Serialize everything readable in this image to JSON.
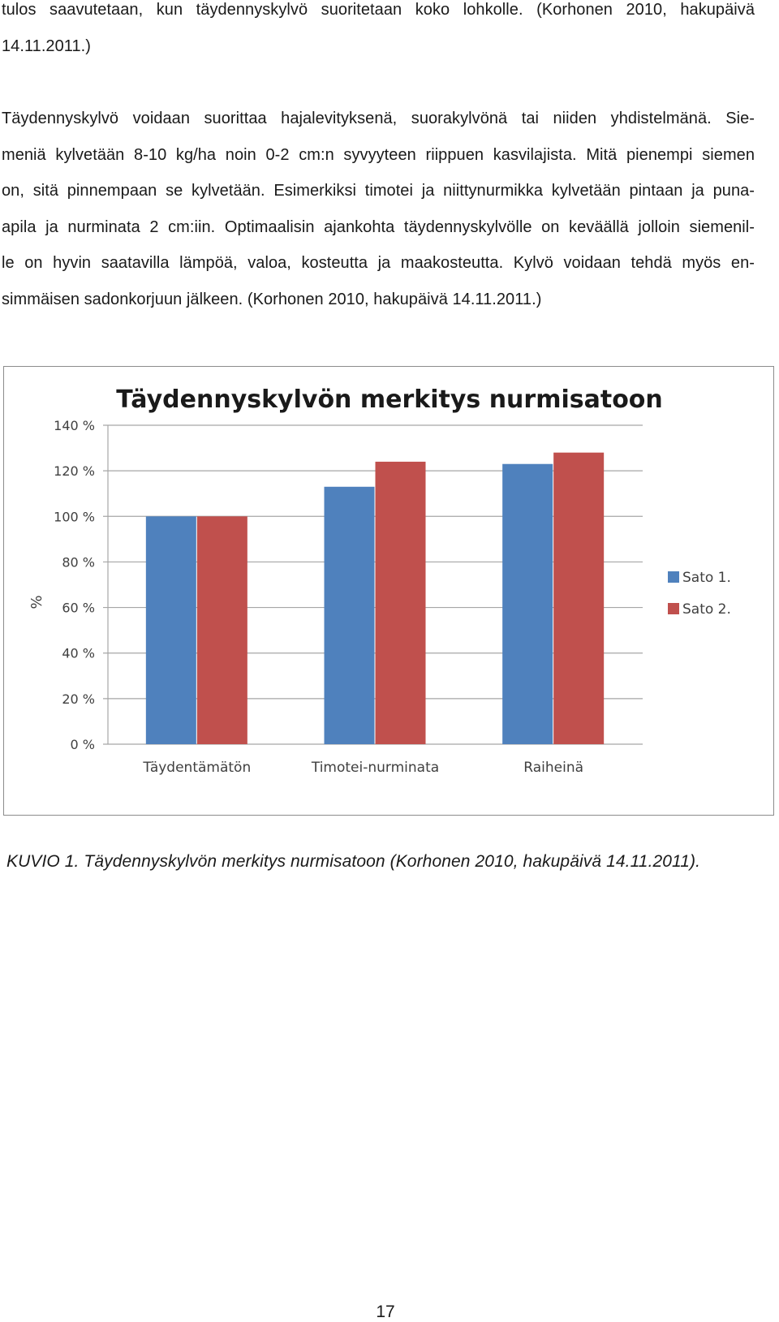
{
  "paragraphs": [
    {
      "lines": [
        "tulos saavutetaan, kun täydennyskylvö suoritetaan koko lohkolle. (Korhonen 2010, hakupäivä",
        "14.11.2011.)"
      ]
    },
    {
      "lines": [
        "Täydennyskylvö voidaan suorittaa hajalevityksenä, suorakylvönä tai niiden yhdistelmänä. Sie-",
        "meniä kylvetään 8-10 kg/ha noin 0-2 cm:n syvyyteen riippuen kasvilajista. Mitä pienempi siemen",
        "on, sitä pinnempaan se kylvetään. Esimerkiksi timotei ja niittynurmikka kylvetään pintaan ja puna-",
        "apila ja nurminata 2 cm:iin. Optimaalisin ajankohta täydennyskylvölle on keväällä jolloin siemenil-",
        "le on hyvin saatavilla lämpöä, valoa, kosteutta ja maakosteutta. Kylvö voidaan tehdä myös en-",
        "simmäisen sadonkorjuun jälkeen. (Korhonen 2010, hakupäivä 14.11.2011.)"
      ]
    }
  ],
  "chart_data": {
    "type": "bar",
    "title": "Täydennyskylvön merkitys nurmisatoon",
    "xlabel": "",
    "ylabel": "%",
    "categories": [
      "Täydentämätön",
      "Timotei-nurminata",
      "Raiheinä"
    ],
    "series": [
      {
        "name": "Sato 1.",
        "color": "#4f81bd",
        "values": [
          100,
          113,
          123
        ]
      },
      {
        "name": "Sato 2.",
        "color": "#c0504d",
        "values": [
          100,
          124,
          128
        ]
      }
    ],
    "ylim": [
      0,
      140
    ],
    "yticks": [
      0,
      20,
      40,
      60,
      80,
      100,
      120,
      140
    ],
    "ytick_labels": [
      "0 %",
      "20 %",
      "40 %",
      "60 %",
      "80 %",
      "100 %",
      "120 %",
      "140 %"
    ],
    "grid": true,
    "legend_position": "right"
  },
  "caption": "KUVIO 1. Täydennyskylvön merkitys nurmisatoon (Korhonen 2010, hakupäivä 14.11.2011).",
  "page_number": "17"
}
